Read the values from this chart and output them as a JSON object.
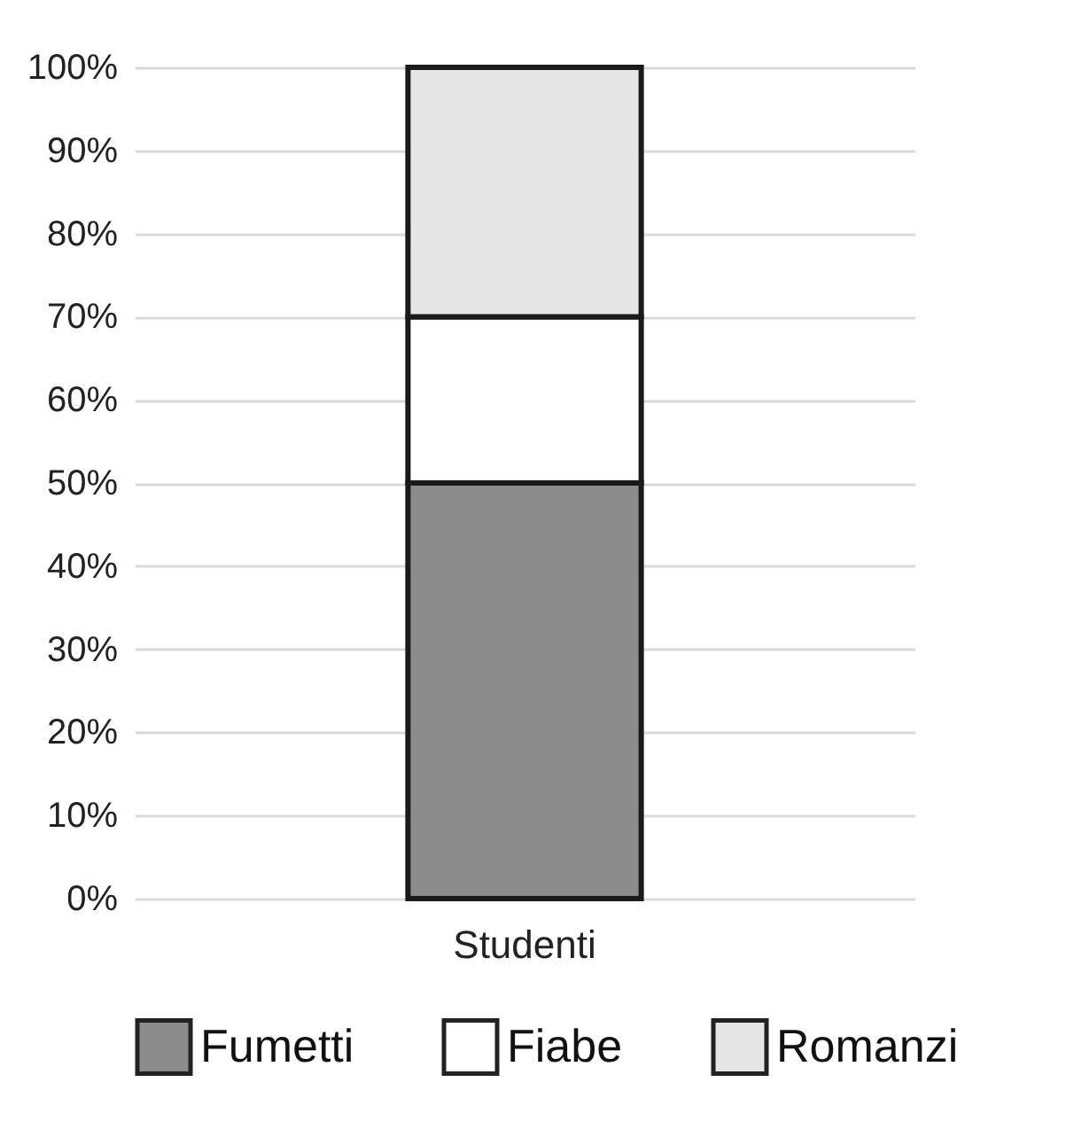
{
  "chart_data": {
    "type": "bar",
    "stacked": true,
    "categories": [
      "Studenti"
    ],
    "series": [
      {
        "name": "Fumetti",
        "color": "#8c8c8c",
        "values": [
          50
        ]
      },
      {
        "name": "Fiabe",
        "color": "#ffffff",
        "values": [
          20
        ]
      },
      {
        "name": "Romanzi",
        "color": "#e6e6e6",
        "values": [
          30
        ]
      }
    ],
    "ylim": [
      0,
      100
    ],
    "yticks": [
      {
        "value": 0,
        "label": "0%"
      },
      {
        "value": 10,
        "label": "10%"
      },
      {
        "value": 20,
        "label": "20%"
      },
      {
        "value": 30,
        "label": "30%"
      },
      {
        "value": 40,
        "label": "40%"
      },
      {
        "value": 50,
        "label": "50%"
      },
      {
        "value": 60,
        "label": "60%"
      },
      {
        "value": 70,
        "label": "70%"
      },
      {
        "value": 80,
        "label": "80%"
      },
      {
        "value": 90,
        "label": "90%"
      },
      {
        "value": 100,
        "label": "100%"
      }
    ],
    "grid": "y",
    "legend": "bottom"
  }
}
